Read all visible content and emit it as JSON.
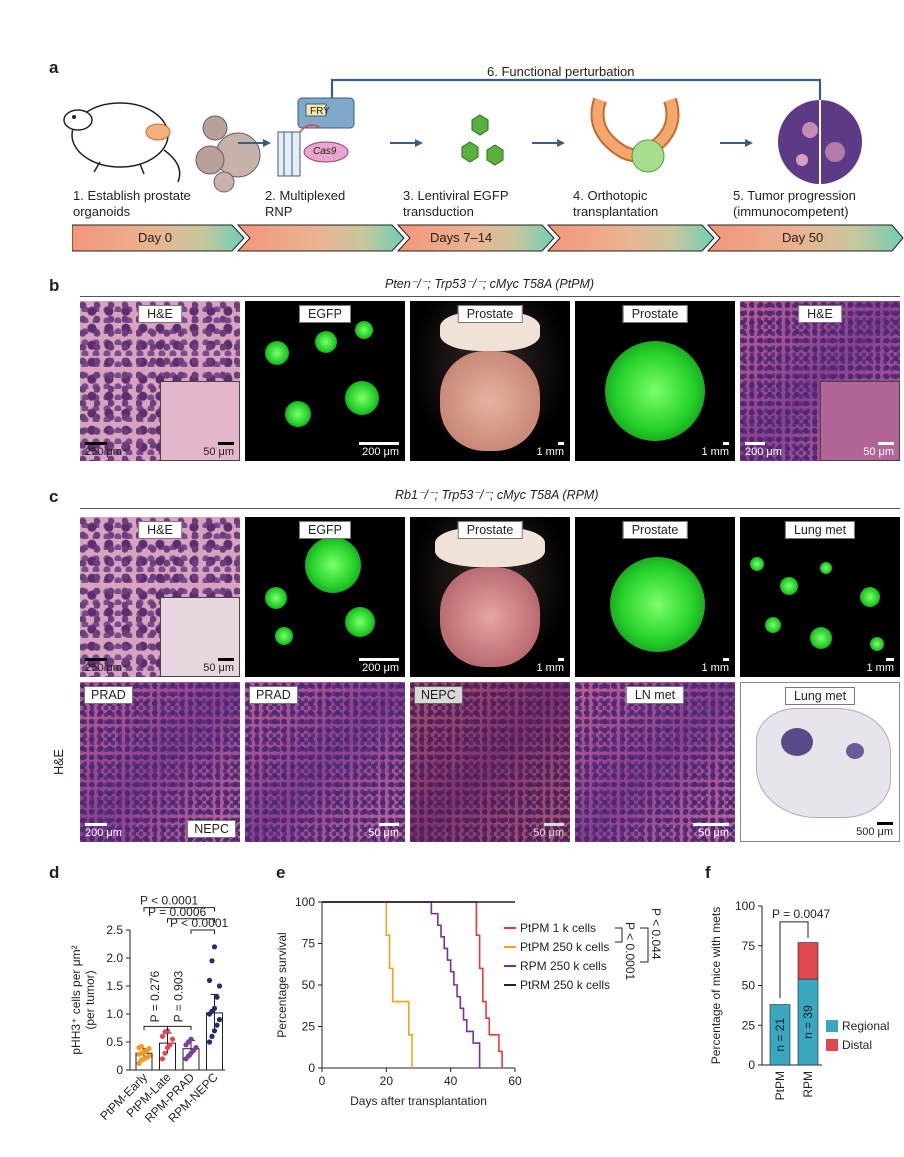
{
  "panel_labels": {
    "a": "a",
    "b": "b",
    "c": "c",
    "d": "d",
    "e": "e",
    "f": "f"
  },
  "panel_a": {
    "feedback_label": "6. Functional perturbation",
    "device_label": "FRY",
    "cas9_label": "Cas9",
    "steps": [
      "1. Establish prostate\norganoids",
      "2. Multiplexed\nRNP",
      "3. Lentiviral EGFP\ntransduction",
      "4. Orthotopic\ntransplantation",
      "5. Tumor progression\n(immunocompetent)"
    ],
    "timeline": [
      "Day 0",
      "",
      "Days 7–14",
      "",
      "Day 50"
    ],
    "timeline_colors": [
      "#f4a07c",
      "#f1b08a",
      "#e6b694",
      "#c9c9a2",
      "#7fcfb2"
    ]
  },
  "panel_b": {
    "genotype": "Pten⁻/⁻; Trp53⁻/⁻; cMyc T58A (PtPM)",
    "tiles": [
      {
        "label": "H&E",
        "scale_left": "250 μm",
        "scale_right": "50 μm"
      },
      {
        "label": "EGFP",
        "scale_right": "200 μm"
      },
      {
        "label": "Prostate",
        "scale_right": "1 mm"
      },
      {
        "label": "Prostate",
        "scale_right": "1 mm"
      },
      {
        "label": "H&E",
        "scale_left": "200 μm",
        "scale_right": "50 μm"
      }
    ]
  },
  "panel_c": {
    "genotype": "Rb1⁻/⁻; Trp53⁻/⁻; cMyc T58A (RPM)",
    "row_label": "H&E",
    "tiles_top": [
      {
        "label": "H&E",
        "scale_left": "250 μm",
        "scale_right": "50 μm"
      },
      {
        "label": "EGFP",
        "scale_right": "200 μm"
      },
      {
        "label": "Prostate",
        "scale_right": "1 mm"
      },
      {
        "label": "Prostate",
        "scale_right": "1 mm"
      },
      {
        "label": "Lung met",
        "scale_right": "1 mm"
      }
    ],
    "tiles_bottom": [
      {
        "label": "PRAD",
        "scale_left": "200 μm",
        "inner": "NEPC"
      },
      {
        "label": "PRAD",
        "scale_right": "50 μm"
      },
      {
        "label": "NEPC",
        "scale_right": "50 μm"
      },
      {
        "label": "LN met",
        "scale_right": "50 μm"
      },
      {
        "label": "Lung met",
        "scale_right": "500 μm"
      }
    ]
  },
  "chart_data": [
    {
      "panel": "d",
      "type": "bar",
      "ylabel": "pHH3⁺ cells per μm²\n(per tumor)",
      "ylim": [
        0,
        2.5
      ],
      "yticks": [
        "0",
        "0.5",
        "1.0",
        "1.5",
        "2.0",
        "2.5"
      ],
      "categories": [
        "PtPM-Early",
        "PtPM-Late",
        "RPM-PRAD",
        "RPM-NEPC"
      ],
      "values": [
        0.3,
        0.48,
        0.38,
        1.02
      ],
      "errors": [
        0.08,
        0.18,
        0.15,
        0.33
      ],
      "colors": [
        "#f29a1f",
        "#e0484f",
        "#7e3f98",
        "#1f2d6b"
      ],
      "points": [
        [
          0.12,
          0.18,
          0.2,
          0.22,
          0.25,
          0.28,
          0.3,
          0.32,
          0.35,
          0.38,
          0.4,
          0.42
        ],
        [
          0.2,
          0.3,
          0.4,
          0.45,
          0.55,
          0.6,
          0.68,
          0.7
        ],
        [
          0.2,
          0.25,
          0.3,
          0.35,
          0.4,
          0.45,
          0.5,
          0.55
        ],
        [
          0.5,
          0.6,
          0.7,
          0.8,
          0.9,
          1.0,
          1.05,
          1.1,
          1.3,
          1.5,
          1.6,
          1.95,
          2.2
        ]
      ],
      "annotations": [
        "P < 0.0001",
        "P = 0.0006",
        "P < 0.0001",
        "P = 0.276",
        "P = 0.903"
      ]
    },
    {
      "panel": "e",
      "type": "line",
      "xlabel": "Days after transplantation",
      "ylabel": "Percentage survival",
      "xlim": [
        0,
        60
      ],
      "ylim": [
        0,
        100
      ],
      "xticks": [
        "0",
        "20",
        "40",
        "60"
      ],
      "yticks": [
        "0",
        "25",
        "50",
        "75",
        "100"
      ],
      "series": [
        {
          "name": "PtPM 1 k cells",
          "color": "#e63a3a",
          "x": [
            0,
            48,
            48,
            49,
            49,
            50,
            50,
            51,
            51,
            52,
            52,
            55,
            55,
            56,
            56
          ],
          "y": [
            100,
            100,
            80,
            80,
            60,
            60,
            40,
            40,
            30,
            30,
            20,
            20,
            10,
            10,
            0
          ]
        },
        {
          "name": "PtPM 250 k cells",
          "color": "#f5a31a",
          "x": [
            0,
            20,
            20,
            21,
            21,
            22,
            22,
            27,
            27,
            28,
            28
          ],
          "y": [
            100,
            100,
            80,
            80,
            60,
            60,
            40,
            40,
            20,
            20,
            0
          ]
        },
        {
          "name": "RPM 250 k cells",
          "color": "#7b2f96",
          "x": [
            0,
            34,
            34,
            36,
            36,
            37,
            37,
            38,
            38,
            39,
            39,
            40,
            40,
            41,
            41,
            42,
            42,
            43,
            43,
            44,
            44,
            45,
            45,
            47,
            47,
            49,
            49
          ],
          "y": [
            100,
            100,
            93,
            93,
            86,
            86,
            79,
            79,
            72,
            72,
            65,
            65,
            58,
            58,
            50,
            50,
            43,
            43,
            36,
            36,
            29,
            29,
            22,
            22,
            15,
            15,
            0
          ]
        },
        {
          "name": "PtRM 250 k cells",
          "color": "#231f20",
          "x": [
            0,
            60
          ],
          "y": [
            100,
            100
          ]
        }
      ],
      "annotations": [
        "P < 0.044",
        "P < 0.0001"
      ]
    },
    {
      "panel": "f",
      "type": "bar",
      "ylabel": "Percentage of mice with mets",
      "ylim": [
        0,
        100
      ],
      "yticks": [
        "0",
        "25",
        "50",
        "75",
        "100"
      ],
      "categories": [
        "PtPM",
        "RPM"
      ],
      "series": [
        {
          "name": "Regional",
          "color": "#3aa7c1",
          "values": [
            38,
            54
          ]
        },
        {
          "name": "Distal",
          "color": "#e0484f",
          "values": [
            0,
            23
          ]
        }
      ],
      "n_labels": [
        "n = 21",
        "n = 39"
      ],
      "annotation": "P = 0.0047"
    }
  ]
}
